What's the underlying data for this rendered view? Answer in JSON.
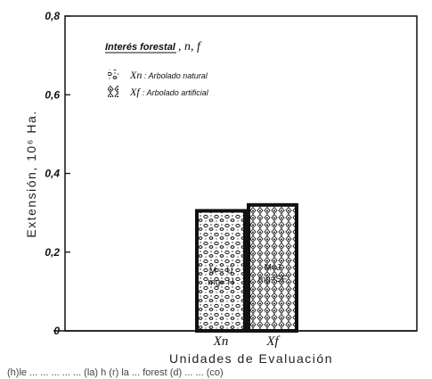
{
  "chart_data": {
    "type": "bar",
    "ylabel": "Extensión, 10⁶ Ha.",
    "xlabel": "Unidades de Evaluación",
    "ylim": [
      0,
      0.8
    ],
    "y_ticks": [
      "0",
      "0,2",
      "0,4",
      "0,6",
      "0,8"
    ],
    "categories": [
      "Xn",
      "Xf"
    ],
    "values": [
      0.305,
      0.32
    ],
    "patterns": [
      "leopard-spots",
      "diamond-lattice"
    ],
    "legend": {
      "title": "Interés forestal",
      "title_vars": ", n, f",
      "placement": "top-left",
      "entries": [
        {
          "key": "Xn",
          "description": ": Arbolado natural"
        },
        {
          "key": "Xf",
          "description": ": Arbolado artificial"
        }
      ]
    },
    "bar_annotations": {
      "Xn": [
        "M ≈ Ü",
        "mg≈ H"
      ],
      "Xf": [
        "M≈J",
        "mg≈SF"
      ]
    },
    "grid": false
  },
  "bottom_text": "(h)le ... ... ... ... ... (la) h (r) la ... forest (d) ... ... (co)"
}
